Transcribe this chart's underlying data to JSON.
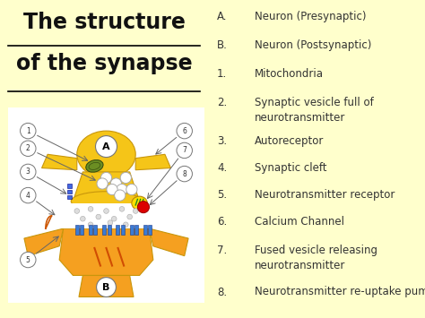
{
  "background_color": "#ffffcc",
  "title_line1": "The structure",
  "title_line2": "of the synapse",
  "title_fontsize": 17,
  "title_color": "#111111",
  "legend_items": [
    {
      "label": "A.",
      "text": "Neuron (Presynaptic)"
    },
    {
      "label": "B.",
      "text": "Neuron (Postsynaptic)"
    },
    {
      "label": "1.",
      "text": "Mitochondria"
    },
    {
      "label": "2.",
      "text": "Synaptic vesicle full of\nneurotransmitter"
    },
    {
      "label": "3.",
      "text": "Autoreceptor"
    },
    {
      "label": "4.",
      "text": "Synaptic cleft"
    },
    {
      "label": "5.",
      "text": "Neurotransmitter receptor"
    },
    {
      "label": "6.",
      "text": "Calcium Channel"
    },
    {
      "label": "7.",
      "text": "Fused vesicle releasing\nneurotransmitter"
    },
    {
      "label": "8.",
      "text": "Neurotransmitter re-uptake pump"
    }
  ],
  "legend_fontsize": 8.5,
  "legend_color": "#333333",
  "neuron_color": "#f5c518",
  "post_color": "#f5a020",
  "diagram_bg": "#ffffff"
}
